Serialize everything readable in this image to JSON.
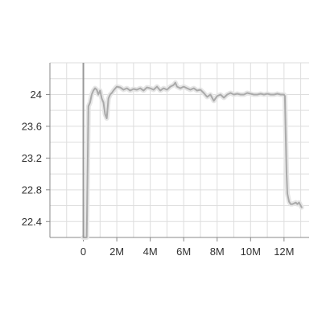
{
  "chart_data": {
    "type": "line",
    "title": "",
    "xlabel": "",
    "ylabel": "",
    "xlim": [
      -2000000,
      13500000
    ],
    "ylim": [
      22.2,
      24.4
    ],
    "grid": true,
    "x_ticks": [
      {
        "value": 0,
        "label": "0"
      },
      {
        "value": 2000000,
        "label": "2M"
      },
      {
        "value": 4000000,
        "label": "4M"
      },
      {
        "value": 6000000,
        "label": "6M"
      },
      {
        "value": 8000000,
        "label": "8M"
      },
      {
        "value": 10000000,
        "label": "10M"
      },
      {
        "value": 12000000,
        "label": "12M"
      }
    ],
    "y_ticks": [
      {
        "value": 22.4,
        "label": "22.4"
      },
      {
        "value": 22.8,
        "label": "22.8"
      },
      {
        "value": 23.2,
        "label": "23.2"
      },
      {
        "value": 23.6,
        "label": "23.6"
      },
      {
        "value": 24.0,
        "label": "24"
      }
    ],
    "marker_line_x": 0,
    "colors": {
      "series": "#aaaaaa",
      "raw": "#e6e6e6",
      "grid": "#dddddd",
      "axis": "#888888",
      "marker": "#999999"
    },
    "series": [
      {
        "x": [
          0,
          50000,
          100000,
          150000,
          200000,
          300000,
          400000,
          500000,
          600000,
          700000,
          800000,
          900000,
          1000000,
          1100000,
          1200000,
          1300000,
          1400000,
          1500000,
          1600000,
          1700000,
          1800000,
          2000000,
          2200000,
          2400000,
          2600000,
          2800000,
          3000000,
          3200000,
          3400000,
          3600000,
          3800000,
          4000000,
          4200000,
          4400000,
          4600000,
          4800000,
          5000000,
          5200000,
          5400000,
          5500000,
          5600000,
          5800000,
          6000000,
          6200000,
          6400000,
          6600000,
          6800000,
          7000000,
          7200000,
          7400000,
          7600000,
          7800000,
          8000000,
          8200000,
          8400000,
          8600000,
          8800000,
          9000000,
          9200000,
          9400000,
          9600000,
          9800000,
          10000000,
          10200000,
          10400000,
          10600000,
          10800000,
          11000000,
          11200000,
          11400000,
          11600000,
          11800000,
          11900000,
          12000000,
          12050000,
          12100000,
          12150000,
          12200000,
          12300000,
          12400000,
          12500000,
          12600000,
          12700000,
          12800000,
          12900000,
          13000000,
          13050000
        ],
        "values": [
          22.2,
          22.2,
          22.2,
          22.2,
          22.2,
          23.85,
          23.9,
          24.0,
          24.05,
          24.08,
          24.06,
          24.0,
          24.05,
          23.95,
          23.9,
          23.75,
          23.7,
          23.95,
          24.0,
          24.02,
          24.05,
          24.1,
          24.09,
          24.06,
          24.08,
          24.05,
          24.07,
          24.06,
          24.08,
          24.05,
          24.09,
          24.08,
          24.06,
          24.1,
          24.05,
          24.08,
          24.06,
          24.1,
          24.12,
          24.15,
          24.1,
          24.08,
          24.1,
          24.08,
          24.06,
          24.08,
          24.05,
          24.06,
          24.02,
          23.97,
          24.0,
          23.92,
          23.98,
          24.0,
          23.96,
          24.0,
          24.02,
          24.0,
          24.01,
          24.0,
          24.0,
          24.02,
          24.01,
          24.0,
          24.0,
          24.01,
          24.0,
          24.01,
          24.0,
          24.0,
          24.01,
          24.0,
          24.0,
          24.0,
          23.98,
          23.5,
          23.0,
          22.75,
          22.65,
          22.62,
          22.62,
          22.63,
          22.64,
          22.62,
          22.64,
          22.6,
          22.58
        ]
      }
    ]
  }
}
